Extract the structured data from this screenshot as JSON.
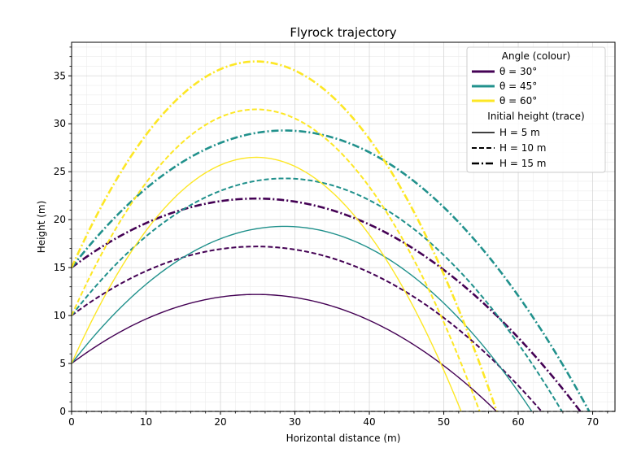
{
  "chart_data": {
    "type": "line",
    "title": "Flyrock trajectory",
    "xlabel": "Horizontal distance (m)",
    "ylabel": "Height (m)",
    "xlim": [
      0,
      73
    ],
    "ylim": [
      0,
      38.5
    ],
    "x_ticks": [
      0,
      10,
      20,
      30,
      40,
      50,
      60,
      70
    ],
    "y_ticks": [
      0,
      5,
      10,
      15,
      20,
      25,
      30,
      35
    ],
    "grid": true,
    "legend_position": "top-right",
    "legend": {
      "angle_title": "Angle (colour)",
      "height_title": "Initial height (trace)",
      "angle_entries": [
        {
          "label": "θ = 30°",
          "color": "#440154"
        },
        {
          "label": "θ = 45°",
          "color": "#21918c"
        },
        {
          "label": "θ = 60°",
          "color": "#fde725"
        }
      ],
      "height_entries": [
        {
          "label": "H = 5 m",
          "dash": "solid"
        },
        {
          "label": "H = 10 m",
          "dash": "dashed"
        },
        {
          "label": "H = 15 m",
          "dash": "dashdot"
        }
      ]
    },
    "ground_line": {
      "y": 0,
      "style": "dashed",
      "color": "#444444"
    },
    "series": [
      {
        "angle_deg": 30,
        "h0": 5,
        "color": "#440154",
        "dash": "solid",
        "apex": [
          24.8,
          12.2
        ],
        "range_x": 57.0
      },
      {
        "angle_deg": 30,
        "h0": 10,
        "color": "#440154",
        "dash": "dashed",
        "apex": [
          24.8,
          17.2
        ],
        "range_x": 63.0
      },
      {
        "angle_deg": 30,
        "h0": 15,
        "color": "#440154",
        "dash": "dashdot",
        "apex": [
          24.8,
          22.2
        ],
        "range_x": 68.2
      },
      {
        "angle_deg": 45,
        "h0": 5,
        "color": "#21918c",
        "dash": "solid",
        "apex": [
          28.6,
          19.3
        ],
        "range_x": 61.8
      },
      {
        "angle_deg": 45,
        "h0": 10,
        "color": "#21918c",
        "dash": "dashed",
        "apex": [
          28.6,
          24.3
        ],
        "range_x": 65.8
      },
      {
        "angle_deg": 45,
        "h0": 15,
        "color": "#21918c",
        "dash": "dashdot",
        "apex": [
          28.6,
          29.3
        ],
        "range_x": 69.3
      },
      {
        "angle_deg": 60,
        "h0": 5,
        "color": "#fde725",
        "dash": "solid",
        "apex": [
          24.8,
          26.5
        ],
        "range_x": 52.2
      },
      {
        "angle_deg": 60,
        "h0": 10,
        "color": "#fde725",
        "dash": "dashed",
        "apex": [
          24.8,
          31.5
        ],
        "range_x": 54.8
      },
      {
        "angle_deg": 60,
        "h0": 15,
        "color": "#fde725",
        "dash": "dashdot",
        "apex": [
          24.8,
          36.5
        ],
        "range_x": 57.0
      }
    ]
  }
}
